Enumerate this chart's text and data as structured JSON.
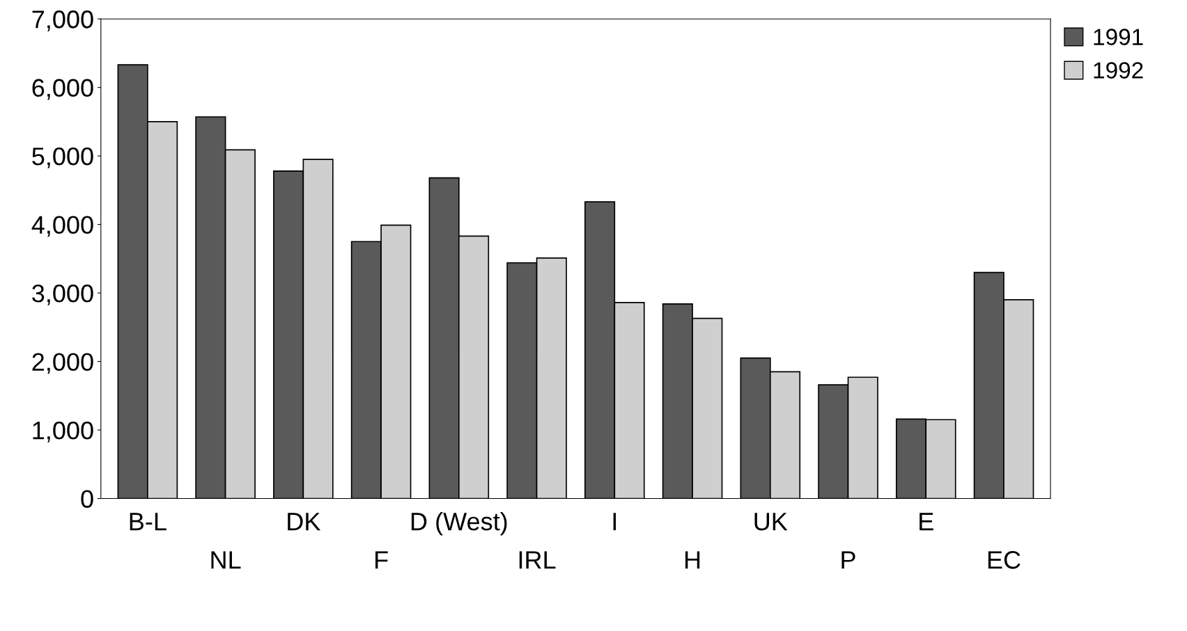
{
  "chart_data": {
    "type": "bar",
    "categories": [
      "B-L",
      "NL",
      "DK",
      "F",
      "D (West)",
      "IRL",
      "I",
      "H",
      "UK",
      "P",
      "E",
      "EC"
    ],
    "series": [
      {
        "name": "1991",
        "color": "#5a5a5a",
        "values": [
          6330,
          5570,
          4780,
          3750,
          4680,
          3440,
          4330,
          2840,
          2050,
          1660,
          1160,
          3300
        ]
      },
      {
        "name": "1992",
        "color": "#cfcfcf",
        "values": [
          5500,
          5090,
          4950,
          3990,
          3830,
          3510,
          2860,
          2630,
          1850,
          1770,
          1150,
          2900
        ]
      }
    ],
    "ylim": [
      0,
      7000
    ],
    "yticks": [
      {
        "value": 0,
        "label": "0"
      },
      {
        "value": 1000,
        "label": "1,000"
      },
      {
        "value": 2000,
        "label": "2,000"
      },
      {
        "value": 3000,
        "label": "3,000"
      },
      {
        "value": 4000,
        "label": "4,000"
      },
      {
        "value": 5000,
        "label": "5,000"
      },
      {
        "value": 6000,
        "label": "6,000"
      },
      {
        "value": 7000,
        "label": "7,000"
      }
    ],
    "legend": "top right",
    "grid": false
  }
}
